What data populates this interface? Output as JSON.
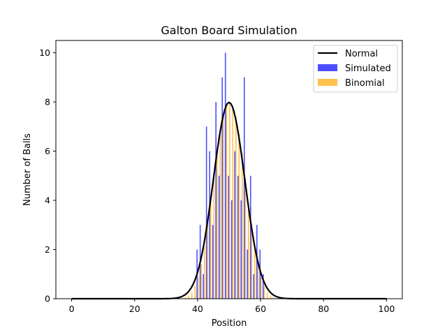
{
  "chart_data": {
    "type": "bar",
    "title": "Galton Board Simulation",
    "xlabel": "Position",
    "ylabel": "Number of Balls",
    "xlim": [
      -5,
      105
    ],
    "ylim": [
      0,
      10.5
    ],
    "xticks": [
      0,
      20,
      40,
      60,
      80,
      100
    ],
    "yticks": [
      0,
      2,
      4,
      6,
      8,
      10
    ],
    "grid": false,
    "legend_position": "top-right",
    "series": [
      {
        "name": "Simulated",
        "kind": "bar",
        "color": "#0000ff",
        "opacity": 0.7,
        "x": [
          38,
          39,
          40,
          41,
          42,
          43,
          44,
          45,
          46,
          47,
          48,
          49,
          50,
          51,
          52,
          53,
          54,
          55,
          56,
          57,
          58,
          59,
          60,
          61,
          62
        ],
        "values": [
          0,
          0,
          2,
          3,
          1,
          7,
          6,
          3,
          8,
          5,
          9,
          10,
          5,
          4,
          6,
          5,
          4,
          9,
          2,
          5,
          1,
          3,
          2,
          1,
          0
        ]
      },
      {
        "name": "Binomial",
        "kind": "bar",
        "color": "#ffa500",
        "opacity": 0.7,
        "x": [
          36,
          37,
          38,
          39,
          40,
          41,
          42,
          43,
          44,
          45,
          46,
          47,
          48,
          49,
          50,
          51,
          52,
          53,
          54,
          55,
          56,
          57,
          58,
          59,
          60,
          61,
          62,
          63,
          64
        ],
        "values": [
          0.06,
          0.13,
          0.27,
          0.53,
          0.87,
          1.4,
          2.1,
          3.0,
          3.9,
          4.9,
          5.9,
          6.7,
          7.4,
          7.8,
          7.96,
          7.8,
          7.4,
          6.7,
          5.9,
          4.9,
          3.9,
          3.0,
          2.1,
          1.4,
          0.87,
          0.53,
          0.27,
          0.13,
          0.06
        ]
      },
      {
        "name": "Normal",
        "kind": "line",
        "color": "#000000",
        "mean": 50,
        "std": 5,
        "peak": 7.98,
        "x_range": [
          0,
          100
        ]
      }
    ]
  }
}
